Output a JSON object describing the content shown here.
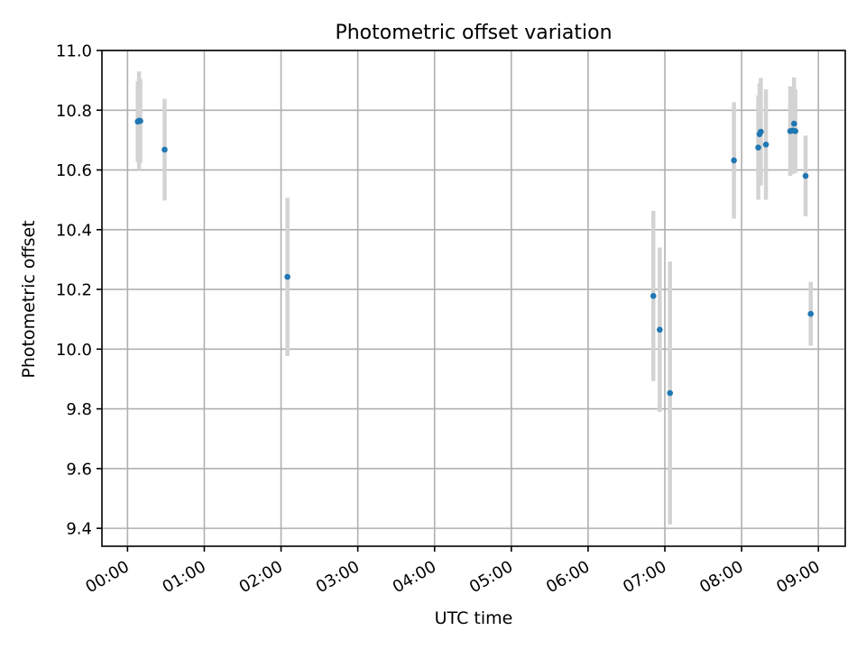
{
  "chart_data": {
    "type": "scatter",
    "title": "Photometric offset variation",
    "xlabel": "UTC time",
    "ylabel": "Photometric offset",
    "x_unit": "hours (UTC)",
    "xlim": [
      "23:40",
      "09:21"
    ],
    "ylim": [
      9.34,
      11.0
    ],
    "grid": true,
    "x_ticks": [
      "00:00",
      "01:00",
      "02:00",
      "03:00",
      "04:00",
      "05:00",
      "06:00",
      "07:00",
      "08:00",
      "09:00"
    ],
    "y_ticks": [
      "9.4",
      "9.6",
      "9.8",
      "10.0",
      "10.2",
      "10.4",
      "10.6",
      "10.8",
      "11.0"
    ],
    "point_color": "#1f77b4",
    "errorbar_color": "#d3d3d3",
    "series": [
      {
        "points": [
          {
            "x": "00:08",
            "y": 10.762,
            "err": 0.135
          },
          {
            "x": "00:09",
            "y": 10.765,
            "err": 0.165
          },
          {
            "x": "00:10",
            "y": 10.764,
            "err": 0.14
          },
          {
            "x": "00:29",
            "y": 10.668,
            "err": 0.17
          },
          {
            "x": "02:05",
            "y": 10.242,
            "err": 0.265
          },
          {
            "x": "06:51",
            "y": 10.178,
            "err": 0.285
          },
          {
            "x": "06:56",
            "y": 10.065,
            "err": 0.275
          },
          {
            "x": "07:04",
            "y": 9.853,
            "err": 0.44
          },
          {
            "x": "07:54",
            "y": 10.632,
            "err": 0.195
          },
          {
            "x": "08:13",
            "y": 10.675,
            "err": 0.175
          },
          {
            "x": "08:14",
            "y": 10.72,
            "err": 0.17
          },
          {
            "x": "08:15",
            "y": 10.728,
            "err": 0.18
          },
          {
            "x": "08:19",
            "y": 10.685,
            "err": 0.185
          },
          {
            "x": "08:38",
            "y": 10.73,
            "err": 0.15
          },
          {
            "x": "08:40",
            "y": 10.732,
            "err": 0.145
          },
          {
            "x": "08:41",
            "y": 10.755,
            "err": 0.155
          },
          {
            "x": "08:42",
            "y": 10.73,
            "err": 0.14
          },
          {
            "x": "08:50",
            "y": 10.58,
            "err": 0.135
          },
          {
            "x": "08:54",
            "y": 10.118,
            "err": 0.107
          }
        ]
      }
    ]
  }
}
